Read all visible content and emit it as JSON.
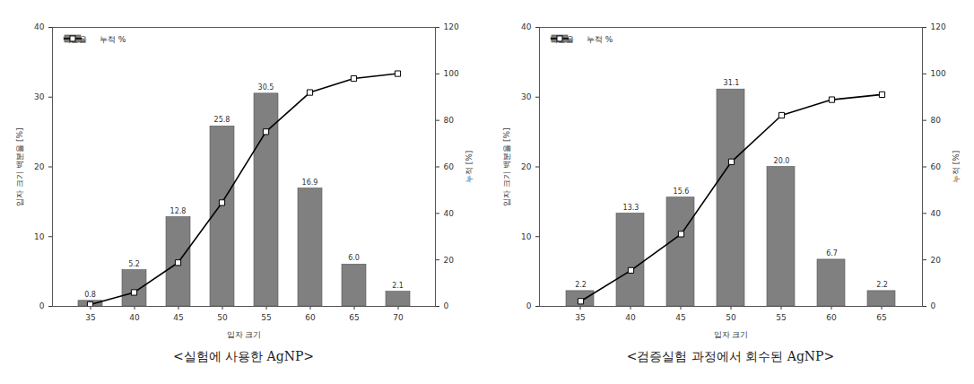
{
  "chart_data": [
    {
      "type": "bar",
      "caption": "<실험에 사용한 AgNP>",
      "xlabel": "입자 크기",
      "ylabel": "입자 크기 백분율 [%]",
      "y2label": "누적 [%]",
      "categories": [
        35,
        40,
        45,
        50,
        55,
        60,
        65,
        70
      ],
      "series": [
        {
          "name": "백분율",
          "type": "bar",
          "color": "#808080",
          "values": [
            0.8,
            5.2,
            12.8,
            25.8,
            30.5,
            16.9,
            6.0,
            2.1
          ],
          "value_labels": [
            "0.8",
            "5.2",
            "12.8",
            "25.8",
            "30.5",
            "16.9",
            "6.0",
            "2.1"
          ]
        },
        {
          "name": "누적 %",
          "type": "line",
          "axis": "y2",
          "color": "#000000",
          "marker": "square",
          "values": [
            0.8,
            6.0,
            18.8,
            44.6,
            75.1,
            92.0,
            98.0,
            100.1
          ]
        }
      ],
      "ylim": [
        0,
        40
      ],
      "yticks": [
        0,
        10,
        20,
        30,
        40
      ],
      "y2lim": [
        0,
        120
      ],
      "y2ticks": [
        0,
        20,
        40,
        60,
        80,
        100,
        120
      ],
      "data_labels": true,
      "legend": "upper left"
    },
    {
      "type": "bar",
      "caption": "<검증실험 과정에서 회수된 AgNP>",
      "xlabel": "입자 크기",
      "ylabel": "입자 크기 백분율 [%]",
      "y2label": "누적 [%]",
      "categories": [
        35,
        40,
        45,
        50,
        55,
        60,
        65
      ],
      "series": [
        {
          "name": "백분율",
          "type": "bar",
          "color": "#808080",
          "values": [
            2.2,
            13.3,
            15.6,
            31.1,
            20.0,
            6.7,
            2.2
          ],
          "value_labels": [
            "2.2",
            "13.3",
            "15.6",
            "31.1",
            "20.0",
            "6.7",
            "2.2"
          ]
        },
        {
          "name": "누적 %",
          "type": "line",
          "axis": "y2",
          "color": "#000000",
          "marker": "square",
          "values": [
            2.2,
            15.5,
            31.1,
            62.2,
            82.2,
            88.9,
            91.1
          ]
        }
      ],
      "ylim": [
        0,
        40
      ],
      "yticks": [
        0,
        10,
        20,
        30,
        40
      ],
      "y2lim": [
        0,
        120
      ],
      "y2ticks": [
        0,
        20,
        40,
        60,
        80,
        100,
        120
      ],
      "data_labels": true,
      "legend": "upper left"
    }
  ]
}
